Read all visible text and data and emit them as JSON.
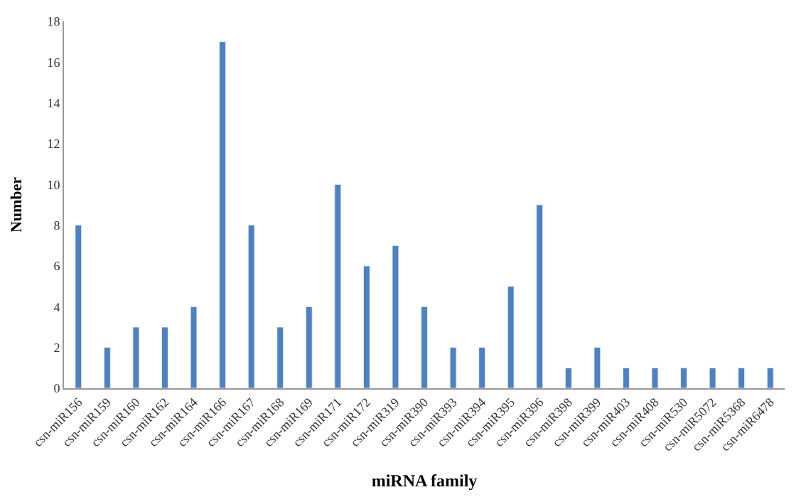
{
  "chart_data": {
    "type": "bar",
    "xlabel": "miRNA family",
    "ylabel": "Number",
    "categories": [
      "csn-miR156",
      "csn-miR159",
      "csn-miR160",
      "csn-miR162",
      "csn-miR164",
      "csn-miR166",
      "csn-miR167",
      "csn-miR168",
      "csn-miR169",
      "csn-miR171",
      "csn-miR172",
      "csn-miR319",
      "csn-miR390",
      "csn-miR393",
      "csn-miR394",
      "csn-miR395",
      "csn-miR396",
      "csn-miR398",
      "csn-miR399",
      "csn-miR403",
      "csn-miR408",
      "csn-miR530",
      "csn-miR5072",
      "csn-miR5368",
      "csn-miR6478"
    ],
    "values": [
      8,
      2,
      3,
      3,
      4,
      17,
      8,
      3,
      4,
      10,
      6,
      7,
      4,
      2,
      2,
      5,
      9,
      1,
      2,
      1,
      1,
      1,
      1,
      1,
      1
    ],
    "color": "#4f81bd",
    "ylim": [
      0,
      18
    ],
    "yticks": [
      0,
      2,
      4,
      6,
      8,
      10,
      12,
      14,
      16,
      18
    ]
  }
}
